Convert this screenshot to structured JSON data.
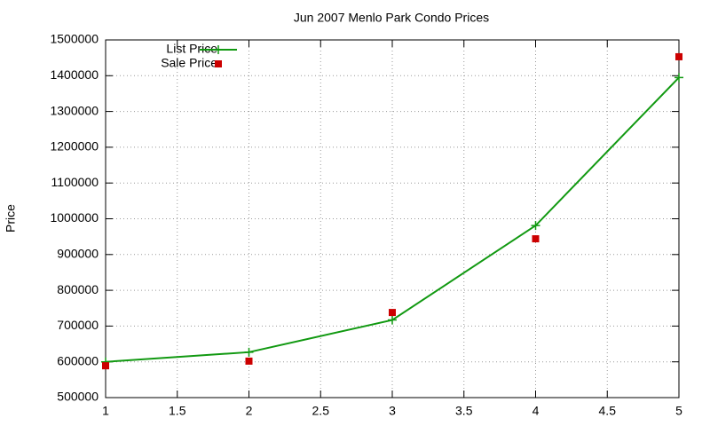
{
  "chart_data": {
    "type": "line",
    "title": "Jun 2007 Menlo Park Condo Prices",
    "ylabel": "Price",
    "x": [
      1,
      2,
      3,
      4,
      5
    ],
    "series": [
      {
        "name": "List Price",
        "color": "#119911",
        "style": "linespoints",
        "values": [
          600000,
          627000,
          717000,
          981000,
          1395000
        ]
      },
      {
        "name": "Sale Price",
        "color": "#cc0000",
        "style": "points",
        "values": [
          589000,
          602000,
          738000,
          944000,
          1453000
        ]
      }
    ],
    "xlim": [
      1,
      5
    ],
    "xticks": [
      1,
      1.5,
      2,
      2.5,
      3,
      3.5,
      4,
      4.5,
      5
    ],
    "ylim": [
      500000,
      1500000
    ],
    "yticks": [
      500000,
      600000,
      700000,
      800000,
      900000,
      1000000,
      1100000,
      1200000,
      1300000,
      1400000,
      1500000
    ],
    "grid": true,
    "legend": "top-left"
  }
}
